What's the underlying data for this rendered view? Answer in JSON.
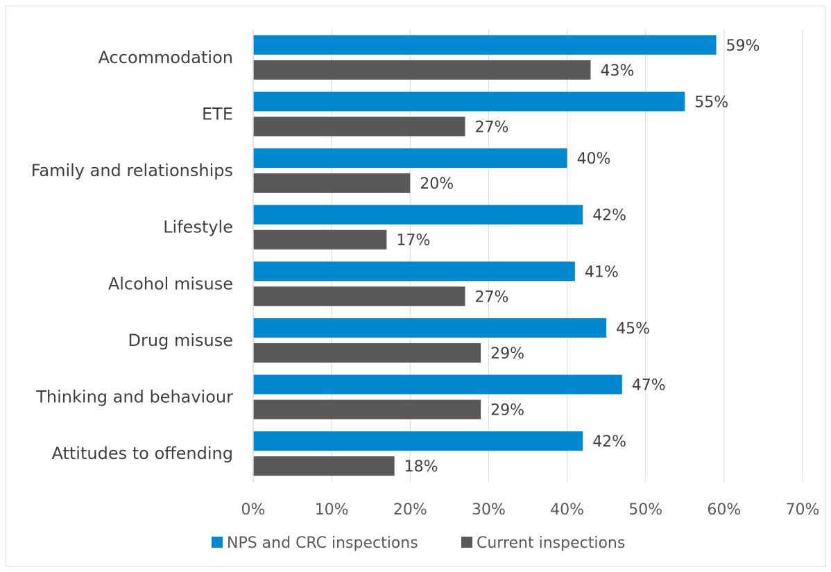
{
  "chart_data": {
    "type": "bar",
    "orientation": "horizontal",
    "categories": [
      "Accommodation",
      "ETE",
      "Family and relationships",
      "Lifestyle",
      "Alcohol misuse",
      "Drug misuse",
      "Thinking and behaviour",
      "Attitudes to offending"
    ],
    "series": [
      {
        "name": "NPS and CRC inspections",
        "color": "#0088d1",
        "values": [
          59,
          55,
          40,
          42,
          41,
          45,
          47,
          42
        ]
      },
      {
        "name": "Current inspections",
        "color": "#595959",
        "values": [
          43,
          27,
          20,
          17,
          27,
          29,
          29,
          18
        ]
      }
    ],
    "data_labels": [
      [
        "59%",
        "55%",
        "40%",
        "42%",
        "41%",
        "45%",
        "47%",
        "42%"
      ],
      [
        "43%",
        "27%",
        "20%",
        "17%",
        "27%",
        "29%",
        "29%",
        "18%"
      ]
    ],
    "xlim": [
      0,
      70
    ],
    "x_ticks": [
      0,
      10,
      20,
      30,
      40,
      50,
      60,
      70
    ],
    "x_tick_labels": [
      "0%",
      "10%",
      "20%",
      "30%",
      "40%",
      "50%",
      "60%",
      "70%"
    ],
    "grid": true,
    "legend_position": "bottom",
    "title": "",
    "xlabel": "",
    "ylabel": ""
  }
}
